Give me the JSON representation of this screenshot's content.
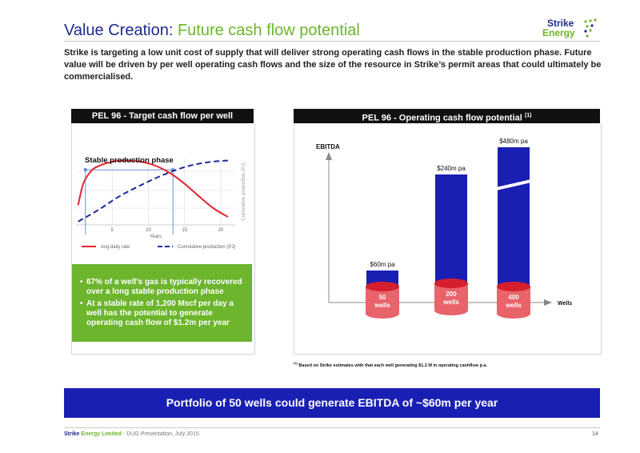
{
  "header": {
    "title_prefix": "Value Creation: ",
    "title_highlight": "Future cash flow potential",
    "logo_word1": "Strike",
    "logo_word2": "Energy"
  },
  "intro_text": "Strike is targeting a low unit cost of supply that will deliver strong operating cash flows in the stable production phase. Future value will be driven by per well operating cash flows and the size of the resource in Strike’s permit areas that could ultimately be commercialised.",
  "left_panel": {
    "title": "PEL 96 - Target cash flow per well",
    "bullets": [
      "67% of a well’s gas is typically recovered over a long stable production phase",
      "At a stable rate of 1,200 Mscf per day a well has the potential to generate operating cash flow of $1.2m per year"
    ]
  },
  "right_panel": {
    "title": "PEL 96 - Operating cash flow potential",
    "title_sup": "(1)",
    "footnote_sup": "(1)",
    "footnote": "Based on Strike estimates with that each well generating $1.2 M in operating cashflow p.a."
  },
  "banner_text": "Portfolio of 50 wells could generate EBITDA of ~$60m per year",
  "footer": {
    "company_part1": "Strike",
    "company_part2": " Energy Limited",
    "rest": " - DUG Presentation, July 2015",
    "page_number": "14"
  },
  "colors": {
    "navy": "#1f2a8c",
    "green": "#6cb52d",
    "bar_blue": "#1a1fb3",
    "curve_red": "#e0262f",
    "curve_blue": "#1f2a9c",
    "cylinder_red": "#e8636a"
  },
  "chart_data": [
    {
      "type": "line",
      "annotation": "Stable production phase",
      "xlabel": "Years",
      "ylabel_right": "Cumulative production (PJ)",
      "x_ticks": [
        5,
        10,
        15,
        20
      ],
      "xlim": [
        0,
        22
      ],
      "series": [
        {
          "name": "Avg daily rate",
          "style": "solid",
          "color": "#e0262f",
          "x": [
            0.3,
            1,
            2,
            3,
            5,
            7,
            9,
            11,
            13,
            15,
            17,
            19,
            21
          ],
          "y": [
            0.3,
            0.62,
            0.8,
            0.88,
            0.95,
            0.97,
            0.95,
            0.89,
            0.78,
            0.62,
            0.43,
            0.25,
            0.12
          ]
        },
        {
          "name": "Cumulative production (PJ)",
          "style": "dashed",
          "color": "#1f2a9c",
          "x": [
            0.3,
            3,
            6,
            9,
            12,
            15,
            18,
            21
          ],
          "y": [
            0.05,
            0.22,
            0.43,
            0.6,
            0.75,
            0.87,
            0.94,
            0.97
          ]
        }
      ],
      "grid": true,
      "legend_position": "bottom"
    },
    {
      "type": "bar",
      "ylabel": "EBITDA",
      "xlabel": "Wells",
      "categories": [
        "50 wells",
        "200 wells",
        "400 wells"
      ],
      "wells_line1": [
        "50",
        "200",
        "400"
      ],
      "wells_line2": [
        "wells",
        "wells",
        "wells"
      ],
      "value_labels": [
        "$60m pa",
        "$240m pa",
        "$480m pa"
      ],
      "values": [
        60,
        240,
        480
      ],
      "axis_break_on_last_bar": true
    }
  ]
}
